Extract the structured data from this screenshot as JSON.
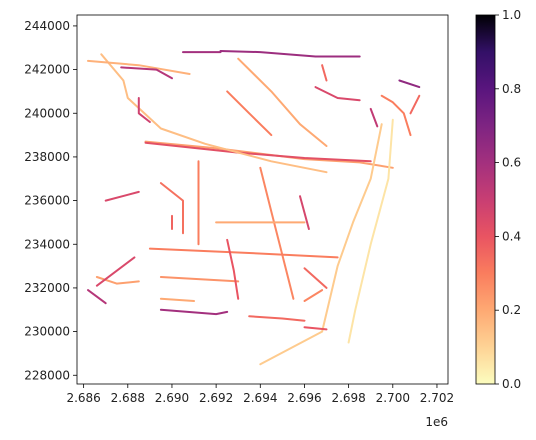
{
  "chart_data": {
    "type": "line",
    "title": "",
    "xlabel": "",
    "ylabel": "",
    "x_offset_label": "1e6",
    "xlim": [
      2.6857,
      2.7025
    ],
    "ylim": [
      227600,
      244500
    ],
    "x_ticks": [
      2.686,
      2.688,
      2.69,
      2.692,
      2.694,
      2.696,
      2.698,
      2.7,
      2.702
    ],
    "x_tick_labels": [
      "2.686",
      "2.688",
      "2.690",
      "2.692",
      "2.694",
      "2.696",
      "2.698",
      "2.700",
      "2.702"
    ],
    "y_ticks": [
      228000,
      230000,
      232000,
      234000,
      236000,
      238000,
      240000,
      242000,
      244000
    ],
    "y_tick_labels": [
      "228000",
      "230000",
      "232000",
      "234000",
      "236000",
      "238000",
      "240000",
      "242000",
      "244000"
    ],
    "grid": false,
    "colormap": "magma_r",
    "colorbar": {
      "min": 0.0,
      "max": 1.0,
      "ticks": [
        0.0,
        0.2,
        0.4,
        0.6,
        0.8,
        1.0
      ],
      "tick_labels": [
        "0.0",
        "0.2",
        "0.4",
        "0.6",
        "0.8",
        "1.0"
      ]
    },
    "series": [
      {
        "value": 0.22,
        "points": [
          [
            2.6888,
            238700
          ],
          [
            2.692,
            238400
          ],
          [
            2.696,
            237900
          ],
          [
            2.6985,
            237750
          ],
          [
            2.7,
            237500
          ]
        ]
      },
      {
        "value": 0.42,
        "points": [
          [
            2.6888,
            238650
          ],
          [
            2.693,
            238200
          ],
          [
            2.696,
            237950
          ],
          [
            2.699,
            237800
          ]
        ]
      },
      {
        "value": 0.12,
        "points": [
          [
            2.6995,
            239500
          ],
          [
            2.699,
            237000
          ],
          [
            2.6982,
            235000
          ],
          [
            2.6975,
            233000
          ],
          [
            2.6968,
            230000
          ],
          [
            2.694,
            228500
          ]
        ]
      },
      {
        "value": 0.06,
        "points": [
          [
            2.7,
            239700
          ],
          [
            2.6998,
            237000
          ],
          [
            2.699,
            234000
          ],
          [
            2.6983,
            231000
          ],
          [
            2.698,
            229500
          ]
        ]
      },
      {
        "value": 0.15,
        "points": [
          [
            2.6868,
            242700
          ],
          [
            2.6878,
            241500
          ],
          [
            2.688,
            240700
          ],
          [
            2.6895,
            239300
          ],
          [
            2.6915,
            238600
          ],
          [
            2.6945,
            237800
          ],
          [
            2.697,
            237300
          ]
        ]
      },
      {
        "value": 0.18,
        "points": [
          [
            2.6862,
            242400
          ],
          [
            2.6885,
            242200
          ],
          [
            2.6908,
            241800
          ]
        ]
      },
      {
        "value": 0.55,
        "points": [
          [
            2.6877,
            242100
          ],
          [
            2.6893,
            242000
          ],
          [
            2.69,
            241600
          ]
        ]
      },
      {
        "value": 0.48,
        "points": [
          [
            2.6885,
            240700
          ],
          [
            2.6885,
            240000
          ],
          [
            2.689,
            239600
          ]
        ]
      },
      {
        "value": 0.6,
        "points": [
          [
            2.6905,
            242800
          ],
          [
            2.6922,
            242800
          ]
        ]
      },
      {
        "value": 0.62,
        "points": [
          [
            2.6922,
            242850
          ],
          [
            2.694,
            242800
          ],
          [
            2.6965,
            242600
          ],
          [
            2.6985,
            242600
          ]
        ]
      },
      {
        "value": 0.35,
        "points": [
          [
            2.6968,
            242200
          ],
          [
            2.697,
            241500
          ]
        ]
      },
      {
        "value": 0.2,
        "points": [
          [
            2.693,
            242500
          ],
          [
            2.6945,
            241000
          ],
          [
            2.6958,
            239500
          ],
          [
            2.697,
            238500
          ]
        ]
      },
      {
        "value": 0.3,
        "points": [
          [
            2.6925,
            241000
          ],
          [
            2.6935,
            240000
          ],
          [
            2.6945,
            239000
          ]
        ]
      },
      {
        "value": 0.3,
        "points": [
          [
            2.6912,
            237800
          ],
          [
            2.6912,
            236200
          ],
          [
            2.6912,
            234000
          ]
        ]
      },
      {
        "value": 0.33,
        "points": [
          [
            2.6895,
            236800
          ],
          [
            2.6905,
            236000
          ],
          [
            2.6905,
            234500
          ]
        ]
      },
      {
        "value": 0.28,
        "points": [
          [
            2.694,
            237500
          ],
          [
            2.6945,
            235500
          ],
          [
            2.695,
            233500
          ],
          [
            2.6955,
            231500
          ]
        ]
      },
      {
        "value": 0.45,
        "points": [
          [
            2.6885,
            236400
          ],
          [
            2.687,
            236000
          ]
        ]
      },
      {
        "value": 0.46,
        "points": [
          [
            2.6958,
            236200
          ],
          [
            2.6962,
            234700
          ]
        ]
      },
      {
        "value": 0.2,
        "points": [
          [
            2.692,
            235000
          ],
          [
            2.696,
            235000
          ]
        ]
      },
      {
        "value": 0.3,
        "points": [
          [
            2.689,
            233800
          ],
          [
            2.6935,
            233600
          ],
          [
            2.6975,
            233400
          ]
        ]
      },
      {
        "value": 0.25,
        "points": [
          [
            2.6895,
            232500
          ],
          [
            2.693,
            232300
          ]
        ]
      },
      {
        "value": 0.4,
        "points": [
          [
            2.6925,
            234200
          ],
          [
            2.6928,
            232800
          ],
          [
            2.693,
            231500
          ]
        ]
      },
      {
        "value": 0.35,
        "points": [
          [
            2.696,
            232900
          ],
          [
            2.697,
            232000
          ]
        ]
      },
      {
        "value": 0.22,
        "points": [
          [
            2.6866,
            232500
          ],
          [
            2.6875,
            232200
          ],
          [
            2.6885,
            232300
          ]
        ]
      },
      {
        "value": 0.45,
        "points": [
          [
            2.6866,
            232100
          ],
          [
            2.6883,
            233400
          ]
        ]
      },
      {
        "value": 0.55,
        "points": [
          [
            2.6862,
            231900
          ],
          [
            2.687,
            231300
          ]
        ]
      },
      {
        "value": 0.2,
        "points": [
          [
            2.6895,
            231500
          ],
          [
            2.691,
            231400
          ]
        ]
      },
      {
        "value": 0.6,
        "points": [
          [
            2.6895,
            231000
          ],
          [
            2.692,
            230800
          ],
          [
            2.6925,
            230900
          ]
        ]
      },
      {
        "value": 0.35,
        "points": [
          [
            2.6935,
            230700
          ],
          [
            2.695,
            230600
          ],
          [
            2.696,
            230500
          ]
        ]
      },
      {
        "value": 0.4,
        "points": [
          [
            2.696,
            230200
          ],
          [
            2.697,
            230100
          ]
        ]
      },
      {
        "value": 0.45,
        "points": [
          [
            2.6965,
            241200
          ],
          [
            2.6975,
            240700
          ],
          [
            2.6985,
            240600
          ]
        ]
      },
      {
        "value": 0.3,
        "points": [
          [
            2.6995,
            240800
          ],
          [
            2.7,
            240500
          ],
          [
            2.7005,
            240000
          ],
          [
            2.7008,
            239000
          ]
        ]
      },
      {
        "value": 0.35,
        "points": [
          [
            2.7012,
            240800
          ],
          [
            2.7008,
            240000
          ]
        ]
      },
      {
        "value": 0.65,
        "points": [
          [
            2.7003,
            241500
          ],
          [
            2.7012,
            241200
          ]
        ]
      },
      {
        "value": 0.52,
        "points": [
          [
            2.699,
            240200
          ],
          [
            2.6993,
            239400
          ]
        ]
      },
      {
        "value": 0.36,
        "points": [
          [
            2.69,
            235300
          ],
          [
            2.69,
            234700
          ]
        ]
      },
      {
        "value": 0.28,
        "points": [
          [
            2.696,
            231400
          ],
          [
            2.6968,
            231900
          ]
        ]
      }
    ]
  }
}
